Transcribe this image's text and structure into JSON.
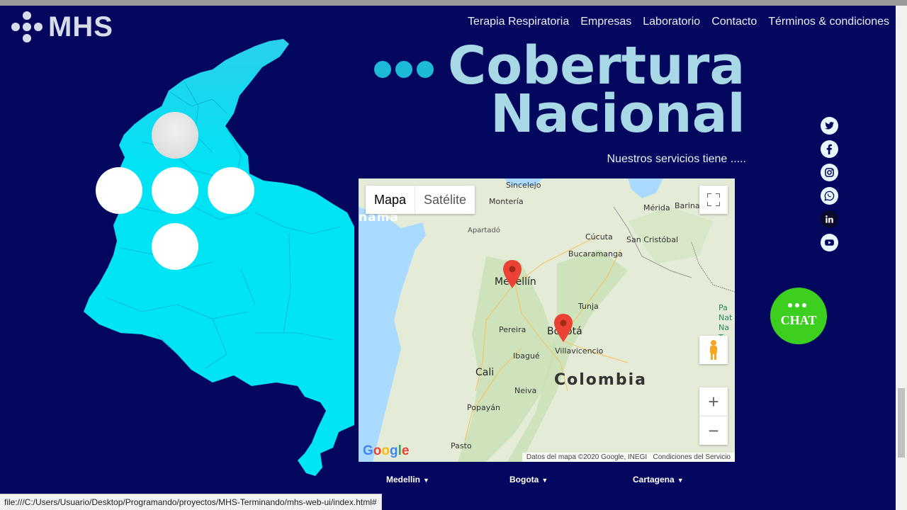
{
  "brand": {
    "logo_text": "MHS"
  },
  "nav": {
    "items": [
      {
        "label": "Terapia Respiratoria"
      },
      {
        "label": "Empresas"
      },
      {
        "label": "Laboratorio"
      },
      {
        "label": "Contacto"
      },
      {
        "label": "Términos & condiciones"
      }
    ]
  },
  "hero": {
    "title_line1": "Cobertura",
    "title_line2": "Nacional",
    "subtitle": "Nuestros servicios tiene ....."
  },
  "map": {
    "type_map": "Mapa",
    "type_satellite": "Satélite",
    "country_label": "Colombia",
    "sea_label": "nama",
    "places": {
      "sincelejo": "Sincelejo",
      "monteria": "Montería",
      "apartado": "Apartadó",
      "cucuta": "Cúcuta",
      "san_cristobal": "San Cristóbal",
      "merida": "Mérida",
      "barinas": "Barinas",
      "bucaramanga": "Bucaramanga",
      "medellin": "Medellín",
      "tunja": "Tunja",
      "pereira": "Pereira",
      "bogota": "Bogotá",
      "ibague": "Ibagué",
      "villavicencio": "Villavicencio",
      "cali": "Cali",
      "neiva": "Neiva",
      "popayan": "Popayán",
      "pasto": "Pasto",
      "pa_nat": "Pa\nNat\nNa\nTu"
    },
    "google": "Google",
    "attribution": "Datos del mapa ©2020 Google, INEGI",
    "terms": "Condiciones del Servicio",
    "zoom_in": "+",
    "zoom_out": "−"
  },
  "cities": [
    {
      "label": "Medellin"
    },
    {
      "label": "Bogota"
    },
    {
      "label": "Cartagena"
    }
  ],
  "social": [
    "twitter-icon",
    "facebook-icon",
    "instagram-icon",
    "whatsapp-icon",
    "linkedin-icon",
    "youtube-icon"
  ],
  "chat": {
    "label": "CHAT"
  },
  "status_bar": {
    "url": "file:///C:/Users/Usuario/Desktop/Programando/proyectos/MHS-Terminando/mhs-web-ui/index.html#"
  },
  "colors": {
    "background": "#04075e",
    "accent_cyan": "#00e5f5",
    "heading": "#a8d8e6",
    "chat_green": "#3ccf1f"
  }
}
